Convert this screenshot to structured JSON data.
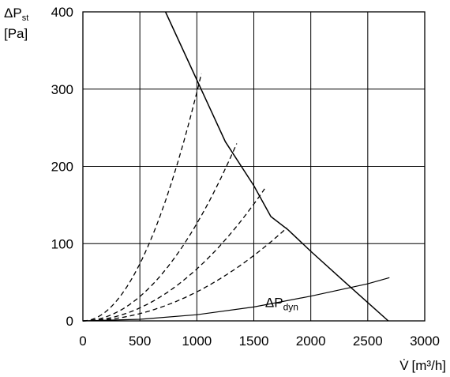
{
  "chart_data": {
    "type": "line",
    "ylabel": {
      "symbol": "ΔP",
      "subscript": "st",
      "unit": "[Pa]"
    },
    "xlabel": {
      "symbol": "V̇",
      "unit": "[m³/h]"
    },
    "xlim": [
      0,
      3000
    ],
    "ylim": [
      0,
      400
    ],
    "x_ticks": [
      0,
      500,
      1000,
      1500,
      2000,
      2500,
      3000
    ],
    "y_ticks": [
      0,
      100,
      200,
      300,
      400
    ],
    "grid": true,
    "series": [
      {
        "style": "solid",
        "points": [
          [
            725,
            400
          ],
          [
            1000,
            312
          ],
          [
            1250,
            232
          ],
          [
            1500,
            175
          ],
          [
            1650,
            135
          ],
          [
            1800,
            118
          ],
          [
            2000,
            90
          ],
          [
            2300,
            50
          ],
          [
            2680,
            0
          ]
        ]
      },
      {
        "name": "ΔP_dyn",
        "style": "solid-thin",
        "points": [
          [
            0,
            0
          ],
          [
            500,
            2
          ],
          [
            1000,
            8
          ],
          [
            1500,
            18
          ],
          [
            2000,
            32
          ],
          [
            2500,
            48
          ],
          [
            2690,
            56
          ]
        ]
      },
      {
        "style": "dashed",
        "k": 0.000296,
        "x_end": 1040
      },
      {
        "style": "dashed",
        "k": 0.000126,
        "x_end": 1350
      },
      {
        "style": "dashed",
        "k": 6.72e-05,
        "x_end": 1595
      },
      {
        "style": "dashed",
        "k": 3.76e-05,
        "x_end": 1790
      }
    ],
    "annotations": [
      {
        "symbol": "ΔP",
        "subscript": "dyn",
        "x": 1600,
        "y": 16
      }
    ]
  }
}
